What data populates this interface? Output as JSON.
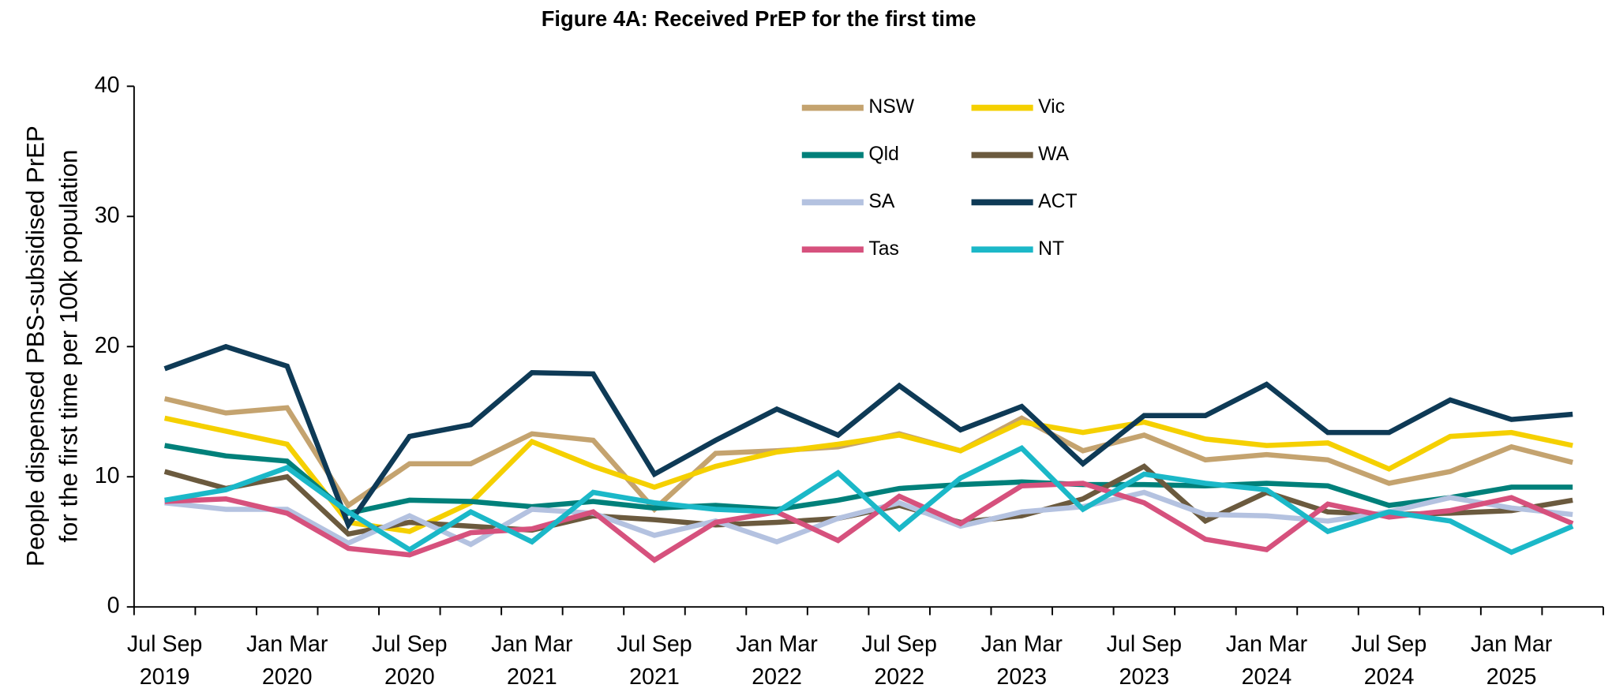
{
  "chart_data": {
    "type": "line",
    "title": "Figure 4A: Received PrEP for the first time",
    "ylabel": [
      "People  dispensed PBS-subsidised PrEP",
      "for the first time per 100k population"
    ],
    "categories": [
      "Jul Sep 2019",
      null,
      "Jan Mar 2020",
      null,
      "Jul Sep 2020",
      null,
      "Jan Mar 2021",
      null,
      "Jul Sep 2021",
      null,
      "Jan Mar 2022",
      null,
      "Jul Sep 2022",
      null,
      "Jan Mar 2023",
      null,
      "Jul Sep 2023",
      null,
      "Jan Mar 2024",
      null,
      "Jul Sep 2024",
      null,
      "Jan Mar 2025",
      null
    ],
    "ylim": [
      0,
      40
    ],
    "yticks": [
      0,
      10,
      20,
      30,
      40
    ],
    "series": [
      {
        "name": "NSW",
        "color": "#c4a36f",
        "values": [
          16,
          14.9,
          15.3,
          7.8,
          11,
          11,
          13.3,
          12.8,
          7.5,
          11.8,
          12,
          12.3,
          13.3,
          12,
          14.5,
          12,
          13.2,
          11.3,
          11.7,
          11.3,
          9.5,
          10.4,
          12.3,
          11.1
        ]
      },
      {
        "name": "Vic",
        "color": "#f5d000",
        "values": [
          14.5,
          13.5,
          12.5,
          6.5,
          5.8,
          8,
          12.7,
          10.8,
          9.2,
          10.8,
          11.9,
          12.5,
          13.2,
          12,
          14.2,
          13.4,
          14.2,
          12.9,
          12.4,
          12.6,
          10.6,
          13.1,
          13.4,
          12.4
        ]
      },
      {
        "name": "Qld",
        "color": "#00807a",
        "values": [
          12.4,
          11.6,
          11.2,
          7.2,
          8.2,
          8.1,
          7.7,
          8.1,
          7.6,
          7.8,
          7.5,
          8.2,
          9.1,
          9.4,
          9.6,
          9.4,
          9.4,
          9.3,
          9.5,
          9.3,
          7.8,
          8.4,
          9.2,
          9.2
        ]
      },
      {
        "name": "WA",
        "color": "#6b5a3e",
        "values": [
          10.4,
          9.1,
          10,
          5.6,
          6.5,
          6.2,
          5.9,
          7,
          6.7,
          6.3,
          6.5,
          6.8,
          7.8,
          6.5,
          7,
          8.3,
          10.8,
          6.6,
          8.8,
          7.3,
          7.1,
          7.2,
          7.4,
          8.2
        ]
      },
      {
        "name": "SA",
        "color": "#b4c2e0",
        "values": [
          8,
          7.5,
          7.5,
          4.9,
          7,
          4.8,
          7.5,
          7.2,
          5.5,
          6.6,
          5,
          6.8,
          8,
          6.2,
          7.3,
          7.7,
          8.8,
          7.1,
          7,
          6.6,
          7.3,
          8.4,
          7.6,
          7.1
        ]
      },
      {
        "name": "ACT",
        "color": "#0e3a56",
        "values": [
          18.3,
          20,
          18.5,
          6.3,
          13.1,
          14,
          18,
          17.9,
          10.2,
          12.8,
          15.2,
          13.2,
          17,
          13.6,
          15.4,
          11,
          14.7,
          14.7,
          17.1,
          13.4,
          13.4,
          15.9,
          14.4,
          14.8
        ]
      },
      {
        "name": "Tas",
        "color": "#d6517d",
        "values": [
          8.1,
          8.3,
          7.2,
          4.5,
          4,
          5.7,
          6,
          7.3,
          3.6,
          6.5,
          7.3,
          5.1,
          8.5,
          6.4,
          9.3,
          9.5,
          8,
          5.2,
          4.4,
          7.9,
          6.9,
          7.4,
          8.4,
          6.4
        ]
      },
      {
        "name": "NT",
        "color": "#1bb8c8",
        "values": [
          8.2,
          9,
          10.7,
          7.3,
          4.4,
          7.3,
          5,
          8.8,
          8,
          7.5,
          7.3,
          10.3,
          6,
          9.9,
          12.2,
          7.5,
          10.2,
          9.5,
          9,
          5.8,
          7.3,
          6.6,
          4.2,
          6.2
        ]
      }
    ]
  }
}
